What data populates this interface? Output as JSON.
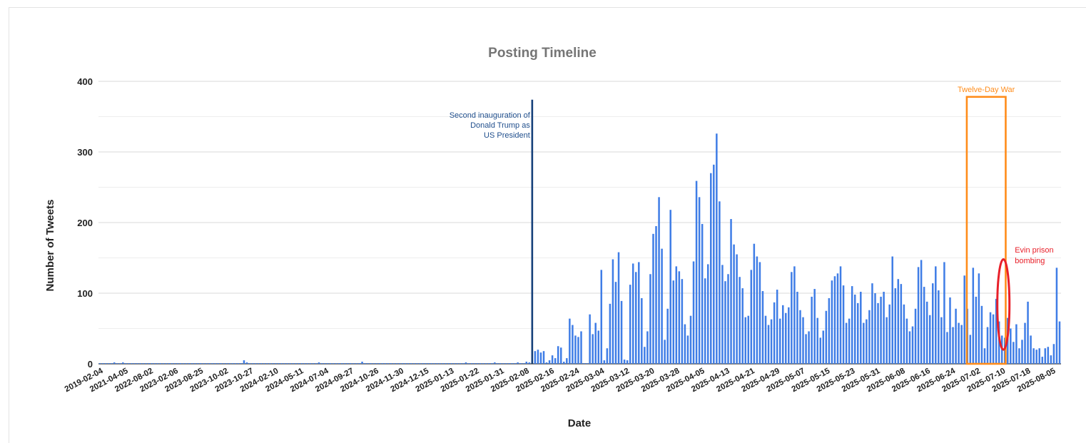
{
  "chart_data": {
    "type": "bar",
    "title": "Posting Timeline",
    "xlabel": "Date",
    "ylabel": "Number of Tweets",
    "ylim": [
      0,
      400
    ],
    "yticks": [
      0,
      100,
      200,
      300,
      400
    ],
    "grid": true,
    "bar_color": "#3f7de6",
    "x_tick_labels": [
      "2019-02-04",
      "2021-04-05",
      "2022-08-02",
      "2023-02-06",
      "2023-08-25",
      "2023-10-02",
      "2023-10-27",
      "2024-02-10",
      "2024-05-11",
      "2024-07-04",
      "2024-09-27",
      "2024-10-26",
      "2024-11-30",
      "2024-12-15",
      "2025-01-13",
      "2025-01-22",
      "2025-01-31",
      "2025-02-08",
      "2025-02-16",
      "2025-02-24",
      "2025-03-04",
      "2025-03-12",
      "2025-03-20",
      "2025-03-28",
      "2025-04-05",
      "2025-04-13",
      "2025-04-21",
      "2025-04-29",
      "2025-05-07",
      "2025-05-15",
      "2025-05-23",
      "2025-05-31",
      "2025-06-08",
      "2025-06-16",
      "2025-06-24",
      "2025-07-02",
      "2025-07-10",
      "2025-07-18",
      "2025-08-05"
    ],
    "values": [
      1,
      1,
      1,
      1,
      1,
      2,
      1,
      1,
      2,
      1,
      1,
      1,
      1,
      1,
      1,
      1,
      1,
      1,
      1,
      1,
      1,
      1,
      1,
      1,
      1,
      1,
      1,
      1,
      1,
      1,
      1,
      1,
      1,
      1,
      1,
      1,
      1,
      1,
      1,
      1,
      1,
      1,
      1,
      1,
      1,
      1,
      1,
      1,
      1,
      1,
      5,
      2,
      1,
      1,
      1,
      1,
      1,
      1,
      1,
      1,
      1,
      1,
      1,
      1,
      1,
      1,
      1,
      1,
      1,
      1,
      1,
      1,
      1,
      1,
      1,
      1,
      2,
      1,
      1,
      1,
      1,
      1,
      1,
      1,
      1,
      1,
      1,
      1,
      1,
      1,
      1,
      3,
      1,
      1,
      1,
      1,
      1,
      1,
      1,
      1,
      1,
      1,
      1,
      1,
      1,
      1,
      1,
      1,
      1,
      1,
      1,
      1,
      1,
      1,
      1,
      1,
      1,
      1,
      1,
      1,
      1,
      1,
      1,
      1,
      1,
      1,
      1,
      2,
      1,
      1,
      1,
      1,
      1,
      1,
      1,
      1,
      1,
      2,
      1,
      1,
      1,
      1,
      1,
      1,
      1,
      2,
      1,
      1,
      3,
      2,
      374,
      18,
      20,
      16,
      18,
      2,
      5,
      12,
      8,
      25,
      23,
      3,
      8,
      64,
      55,
      40,
      38,
      46,
      1,
      1,
      70,
      42,
      58,
      47,
      133,
      5,
      22,
      85,
      148,
      116,
      158,
      89,
      6,
      5,
      112,
      142,
      130,
      144,
      93,
      24,
      46,
      127,
      184,
      195,
      236,
      163,
      34,
      78,
      218,
      118,
      138,
      131,
      120,
      56,
      40,
      68,
      145,
      259,
      236,
      198,
      121,
      141,
      270,
      282,
      326,
      230,
      140,
      117,
      127,
      205,
      169,
      155,
      123,
      107,
      66,
      68,
      133,
      170,
      152,
      144,
      103,
      68,
      55,
      63,
      87,
      105,
      64,
      83,
      72,
      80,
      130,
      138,
      102,
      76,
      66,
      42,
      46,
      95,
      106,
      65,
      37,
      47,
      75,
      93,
      118,
      124,
      128,
      138,
      111,
      58,
      64,
      110,
      98,
      86,
      102,
      58,
      63,
      76,
      114,
      100,
      86,
      95,
      102,
      66,
      84,
      152,
      107,
      120,
      113,
      84,
      64,
      46,
      53,
      78,
      137,
      147,
      109,
      88,
      69,
      114,
      138,
      104,
      66,
      144,
      45,
      94,
      52,
      78,
      58,
      55,
      125,
      78,
      41,
      136,
      95,
      128,
      82,
      22,
      52,
      73,
      70,
      92,
      60,
      40,
      37,
      65,
      50,
      31,
      56,
      22,
      34,
      58,
      88,
      40,
      22,
      20,
      22,
      10,
      22,
      24,
      12,
      28,
      136,
      60
    ],
    "annotations": [
      {
        "id": "inauguration",
        "lines": [
          "Second inauguration of",
          "Donald Trump as",
          "US President"
        ],
        "color": "#1f4e8c",
        "bar_index": 150
      },
      {
        "id": "twelve_day_war",
        "label": "Twelve-Day War",
        "color": "#ff8c1a",
        "x_from_index": 301,
        "x_to_index": 314,
        "y_top": 378
      },
      {
        "id": "evin",
        "lines": [
          "Evin prison",
          "bombing"
        ],
        "color": "#e8202a",
        "center_index": 313,
        "y_center": 84,
        "y_radius": 64
      }
    ]
  }
}
